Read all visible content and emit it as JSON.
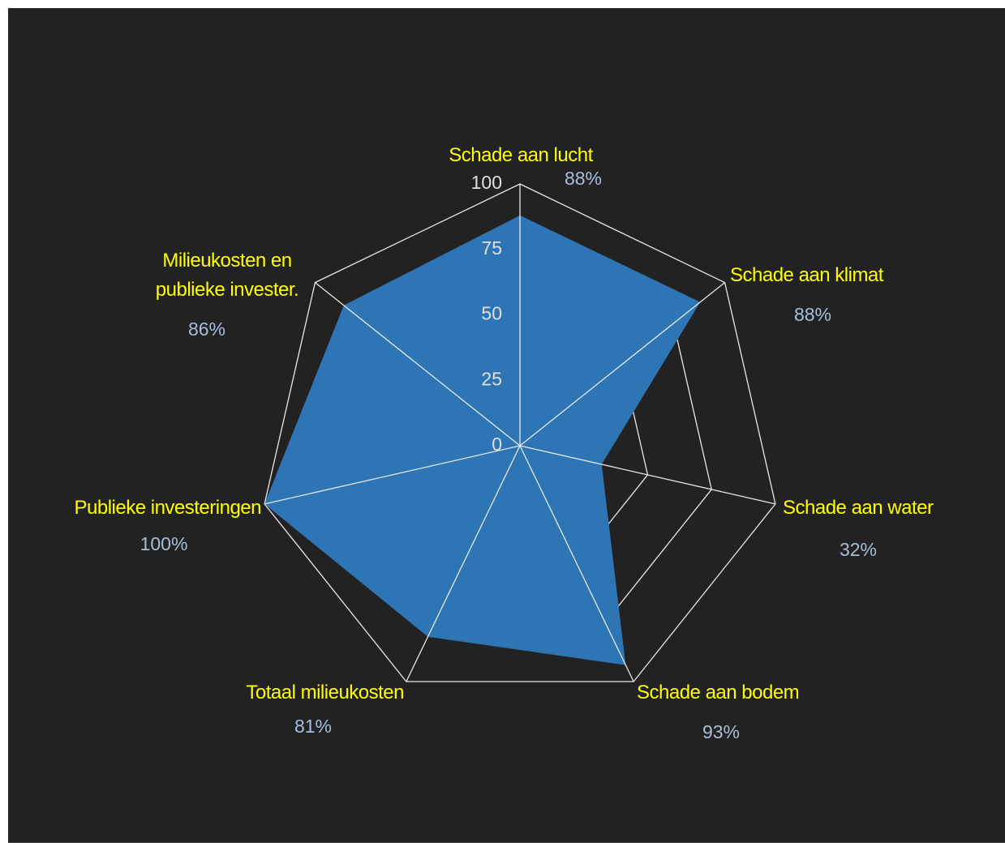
{
  "chart_data": {
    "type": "radar",
    "categories": [
      "Schade aan lucht",
      "Schade aan klimat",
      "Schade aan water",
      "Schade aan bodem",
      "Totaal milieukosten",
      "Publieke investeringen",
      "Milieukosten en\npublieke invester."
    ],
    "values": [
      88,
      88,
      32,
      93,
      81,
      100,
      86
    ],
    "value_labels": [
      "88%",
      "88%",
      "32%",
      "93%",
      "81%",
      "100%",
      "86%"
    ],
    "color": "#2e75b6",
    "rlim": [
      0,
      100
    ],
    "rticks": [
      0,
      25,
      50,
      75,
      100
    ],
    "grid": true
  }
}
